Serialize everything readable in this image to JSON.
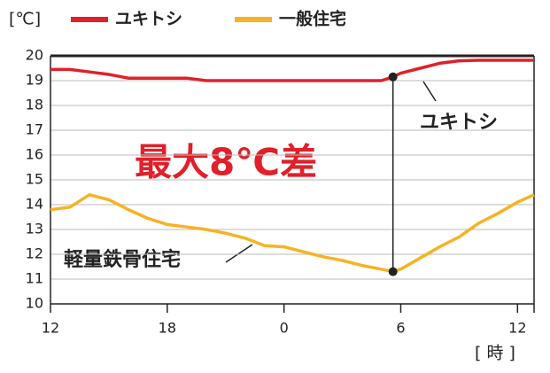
{
  "chart_data": {
    "type": "line",
    "y_unit": "[℃]",
    "x_unit": "[ 時 ]",
    "x": [
      0,
      1,
      2,
      3,
      4,
      5,
      6,
      7,
      8,
      9,
      10,
      11,
      12,
      13,
      14,
      15,
      16,
      17,
      17.6,
      18,
      19,
      20,
      21,
      22,
      23,
      24,
      24.85
    ],
    "series": [
      {
        "name": "ユキトシ",
        "color": "#e0202a",
        "values": [
          19.45,
          19.45,
          19.35,
          19.25,
          19.1,
          19.1,
          19.1,
          19.1,
          19.0,
          19.0,
          19.0,
          19.0,
          19.0,
          19.0,
          19.0,
          19.0,
          19.0,
          19.0,
          19.15,
          19.3,
          19.5,
          19.7,
          19.8,
          19.82,
          19.82,
          19.82,
          19.82
        ]
      },
      {
        "name": "一般住宅",
        "color": "#f5b324",
        "values": [
          13.8,
          13.9,
          14.4,
          14.2,
          13.8,
          13.45,
          13.2,
          13.1,
          13.0,
          12.85,
          12.65,
          12.35,
          12.3,
          12.1,
          11.9,
          11.75,
          11.55,
          11.4,
          11.3,
          11.4,
          11.85,
          12.3,
          12.7,
          13.25,
          13.65,
          14.1,
          14.4
        ]
      }
    ],
    "annotations": [
      "最大8℃差",
      "ユキトシ",
      "軽量鉄骨住宅"
    ],
    "xlim": [
      0,
      24.85
    ],
    "ylim": [
      10,
      20
    ],
    "xticks": [
      {
        "value": 0,
        "label": "12"
      },
      {
        "value": 6,
        "label": "18"
      },
      {
        "value": 12,
        "label": "0"
      },
      {
        "value": 18,
        "label": "6"
      },
      {
        "value": 24,
        "label": "12"
      }
    ],
    "yticks": [
      10,
      11,
      12,
      13,
      14,
      15,
      16,
      17,
      18,
      19,
      20
    ],
    "grid": true
  }
}
